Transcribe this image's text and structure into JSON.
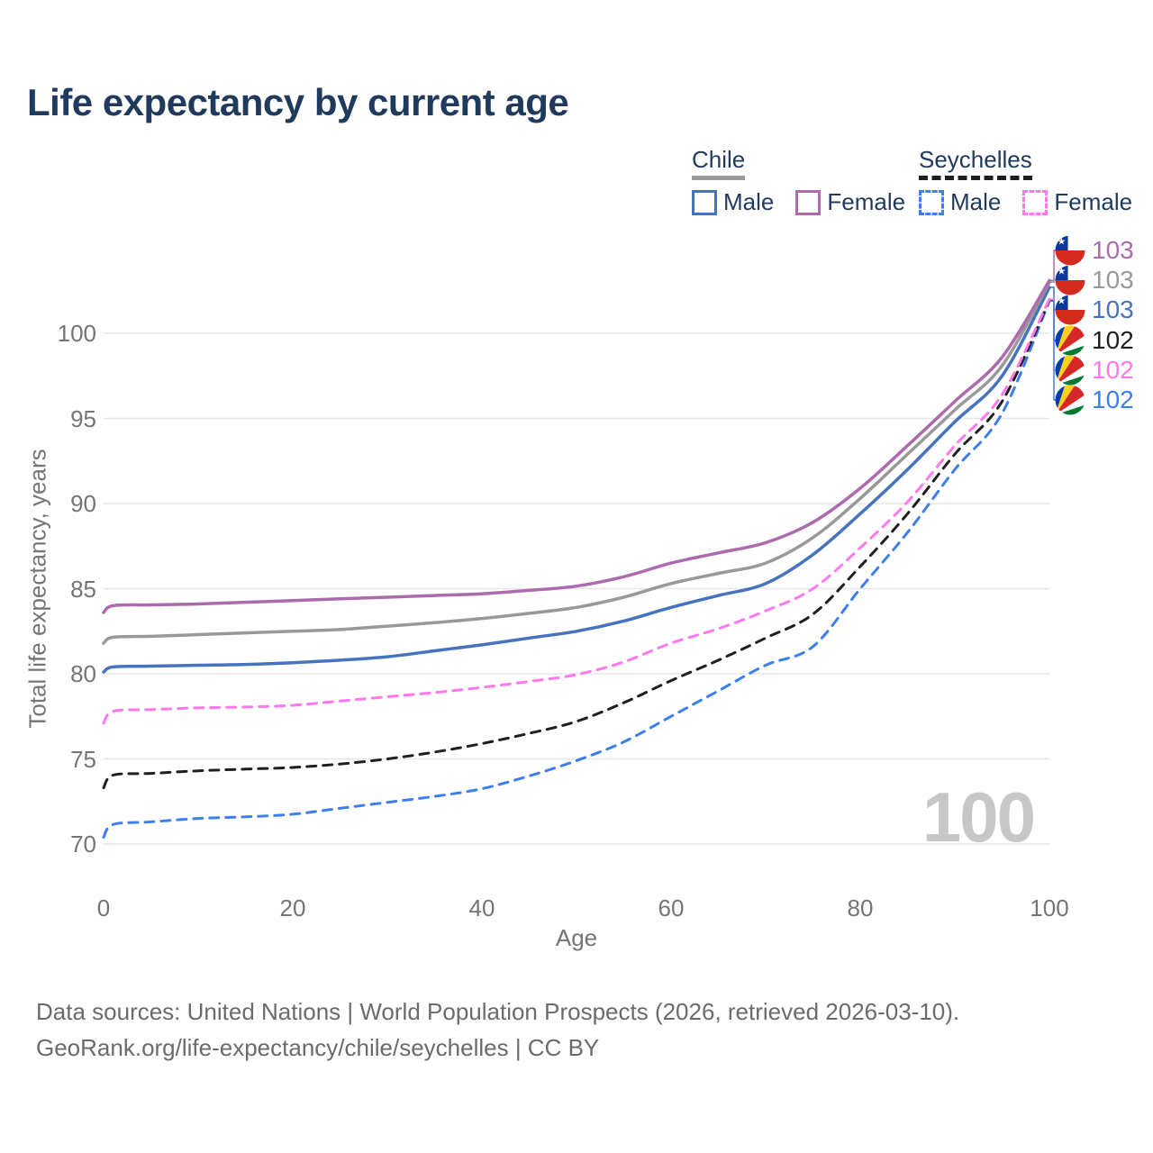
{
  "title": "Life expectancy by current age",
  "watermark": "100",
  "legend": {
    "groups": [
      {
        "country": "Chile",
        "style": "solid",
        "underline_color": "#999999",
        "items": [
          {
            "label": "Male",
            "color": "#4673bf"
          },
          {
            "label": "Female",
            "color": "#ab6bad"
          }
        ]
      },
      {
        "country": "Seychelles",
        "style": "dashed",
        "underline_color": "#1f1f1f",
        "items": [
          {
            "label": "Male",
            "color": "#3d7ff0"
          },
          {
            "label": "Female",
            "color": "#ff78ec"
          }
        ]
      }
    ]
  },
  "footer": {
    "line1": "Data sources: United Nations | World Population Prospects (2026, retrieved 2026-03-10).",
    "line2": "GeoRank.org/life-expectancy/chile/seychelles | CC BY"
  },
  "icons": [
    {
      "name": "chile-flag-icon"
    },
    {
      "name": "seychelles-flag-icon"
    }
  ],
  "colors": {
    "title": "#1f3a5c",
    "axis_text": "#757575",
    "grid": "#e7e7e7",
    "watermark": "#c7c7c7",
    "footer": "#6b6b6b",
    "chile_male": "#4673bf",
    "chile_female": "#ab6bad",
    "chile_both": "#999999",
    "seychelles_male": "#3d7ff0",
    "seychelles_female": "#ff78ec",
    "seychelles_both": "#1f1f1f"
  },
  "end_labels": [
    {
      "series": "chile_female",
      "flag": "chile",
      "value": "103",
      "color": "#ab6bad"
    },
    {
      "series": "chile_both",
      "flag": "chile",
      "value": "103",
      "color": "#999999"
    },
    {
      "series": "chile_male",
      "flag": "chile",
      "value": "103",
      "color": "#4673bf"
    },
    {
      "series": "seychelles_both",
      "flag": "seychelles",
      "value": "102",
      "color": "#1f1f1f"
    },
    {
      "series": "seychelles_female",
      "flag": "seychelles",
      "value": "102",
      "color": "#ff78ec"
    },
    {
      "series": "seychelles_male",
      "flag": "seychelles",
      "value": "102",
      "color": "#3d7ff0"
    }
  ],
  "chart_data": {
    "type": "line",
    "title": "Life expectancy by current age",
    "xlabel": "Age",
    "ylabel": "Total life expectancy, years",
    "xlim": [
      0,
      100
    ],
    "ylim": [
      70,
      100
    ],
    "xticks": [
      0,
      20,
      40,
      60,
      80,
      100
    ],
    "yticks": [
      70,
      75,
      80,
      85,
      90,
      95,
      100
    ],
    "grid": "horizontal",
    "legend_position": "top-right",
    "x": [
      0,
      1,
      5,
      10,
      15,
      20,
      25,
      30,
      35,
      40,
      45,
      50,
      55,
      60,
      65,
      70,
      75,
      80,
      85,
      90,
      95,
      100
    ],
    "series": [
      {
        "id": "chile_male",
        "name": "Chile Male",
        "country": "Chile",
        "sex": "Male",
        "style": "solid",
        "color": "#4673bf",
        "end_label": 103,
        "values": [
          80.1,
          80.4,
          80.45,
          80.5,
          80.55,
          80.65,
          80.8,
          81.0,
          81.35,
          81.7,
          82.1,
          82.5,
          83.1,
          83.9,
          84.6,
          85.3,
          87.0,
          89.4,
          92.0,
          94.8,
          97.5,
          102.7
        ]
      },
      {
        "id": "chile_both",
        "name": "Chile Both sexes",
        "country": "Chile",
        "sex": "Both",
        "style": "solid",
        "color": "#999999",
        "end_label": 103,
        "values": [
          81.8,
          82.15,
          82.2,
          82.3,
          82.4,
          82.5,
          82.6,
          82.8,
          83.0,
          83.25,
          83.55,
          83.9,
          84.5,
          85.3,
          85.9,
          86.5,
          88.0,
          90.3,
          92.9,
          95.5,
          98.1,
          103.0
        ]
      },
      {
        "id": "chile_female",
        "name": "Chile Female",
        "country": "Chile",
        "sex": "Female",
        "style": "solid",
        "color": "#ab6bad",
        "end_label": 103,
        "values": [
          83.6,
          84.0,
          84.05,
          84.1,
          84.2,
          84.3,
          84.4,
          84.5,
          84.6,
          84.7,
          84.9,
          85.15,
          85.7,
          86.5,
          87.1,
          87.7,
          88.9,
          90.9,
          93.4,
          96.0,
          98.6,
          103.1
        ]
      },
      {
        "id": "seychelles_male",
        "name": "Seychelles Male",
        "country": "Seychelles",
        "sex": "Male",
        "style": "dashed",
        "color": "#3d7ff0",
        "end_label": 102,
        "values": [
          70.4,
          71.15,
          71.3,
          71.5,
          71.6,
          71.75,
          72.1,
          72.45,
          72.8,
          73.25,
          74.0,
          74.9,
          76.0,
          77.5,
          79.0,
          80.5,
          81.6,
          85.0,
          88.3,
          92.0,
          95.3,
          101.9
        ]
      },
      {
        "id": "seychelles_both",
        "name": "Seychelles Both sexes",
        "country": "Seychelles",
        "sex": "Both",
        "style": "dashed",
        "color": "#1f1f1f",
        "end_label": 102,
        "values": [
          73.3,
          74.05,
          74.15,
          74.3,
          74.4,
          74.5,
          74.7,
          75.0,
          75.4,
          75.9,
          76.5,
          77.2,
          78.3,
          79.6,
          80.8,
          82.1,
          83.5,
          86.3,
          89.4,
          92.9,
          96.0,
          101.95
        ]
      },
      {
        "id": "seychelles_female",
        "name": "Seychelles Female",
        "country": "Seychelles",
        "sex": "Female",
        "style": "dashed",
        "color": "#ff78ec",
        "end_label": 102,
        "values": [
          77.1,
          77.8,
          77.9,
          78.0,
          78.05,
          78.15,
          78.4,
          78.65,
          78.9,
          79.2,
          79.55,
          79.95,
          80.7,
          81.8,
          82.65,
          83.7,
          85.0,
          87.4,
          90.1,
          93.4,
          96.4,
          102.0
        ]
      }
    ]
  }
}
